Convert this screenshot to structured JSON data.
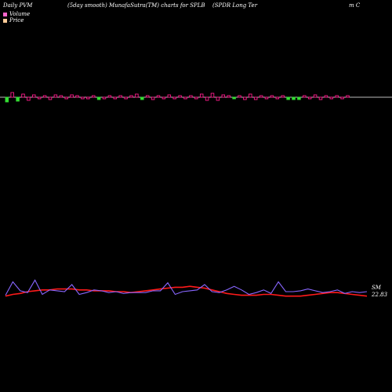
{
  "header": {
    "left": "Daily PVM",
    "middle": "(5day smooth) MunafaSutra(TM) charts for SPLB",
    "right": "(SPDR Long Ter",
    "right_tail": "m C"
  },
  "legend": [
    {
      "label": "Volume",
      "color": "#ff66cc"
    },
    {
      "label": "Price",
      "color": "#ffcc99"
    }
  ],
  "chart_data": [
    {
      "type": "bar",
      "title": "Volume (5day smooth)",
      "baseline_label": "",
      "colors": {
        "up": "#ff1a8c",
        "down": "#33dd33",
        "fill": "#000000"
      },
      "values": [
        -6,
        6,
        -5,
        4,
        -4,
        3,
        -2,
        2,
        -3,
        3,
        2,
        -2,
        3,
        2,
        -2,
        -2,
        2,
        -3,
        -2,
        2,
        -2,
        2,
        -2,
        2,
        4,
        -3,
        2,
        -3,
        2,
        -2,
        3,
        -2,
        2,
        -2,
        2,
        -2,
        4,
        -4,
        5,
        -4,
        3,
        2,
        -2,
        2,
        -3,
        4,
        -3,
        2,
        -2,
        2,
        -2,
        2,
        -3,
        -3,
        -3,
        2,
        -2,
        3,
        -3,
        2,
        -2,
        2,
        -2,
        2
      ],
      "colors_list": [
        "down",
        "up",
        "down",
        "up",
        "up",
        "up",
        "up",
        "up",
        "up",
        "up",
        "up",
        "up",
        "up",
        "up",
        "up",
        "up",
        "up",
        "down",
        "up",
        "up",
        "up",
        "up",
        "up",
        "up",
        "up",
        "down",
        "up",
        "up",
        "up",
        "up",
        "up",
        "up",
        "up",
        "up",
        "up",
        "up",
        "up",
        "up",
        "up",
        "up",
        "up",
        "up",
        "down",
        "up",
        "up",
        "up",
        "up",
        "up",
        "up",
        "up",
        "up",
        "up",
        "down",
        "down",
        "down",
        "up",
        "up",
        "up",
        "up",
        "up",
        "up",
        "up",
        "up",
        "up"
      ]
    },
    {
      "type": "line",
      "title": "",
      "series": [
        {
          "color": "#ff1a1a",
          "values": [
            20,
            22,
            23,
            25,
            26,
            27,
            27,
            28,
            28,
            28,
            27,
            27,
            26,
            26,
            26,
            25,
            25,
            24,
            25,
            26,
            27,
            28,
            29,
            30,
            30,
            31,
            30,
            29,
            27,
            25,
            23,
            22,
            21,
            21,
            21,
            22,
            22,
            21,
            20,
            20,
            20,
            21,
            22,
            23,
            24,
            24,
            23,
            22,
            21,
            20
          ]
        },
        {
          "color": "#8866ff",
          "values": [
            21,
            36,
            26,
            24,
            38,
            22,
            27,
            26,
            25,
            33,
            22,
            24,
            27,
            26,
            24,
            25,
            23,
            24,
            24,
            24,
            26,
            26,
            35,
            22,
            25,
            26,
            27,
            33,
            25,
            24,
            27,
            31,
            27,
            22,
            24,
            27,
            23,
            36,
            25,
            25,
            26,
            28,
            26,
            24,
            25,
            27,
            23,
            25,
            24,
            25
          ]
        }
      ],
      "last_value_label": "22.83",
      "series_tag": "SM"
    }
  ]
}
